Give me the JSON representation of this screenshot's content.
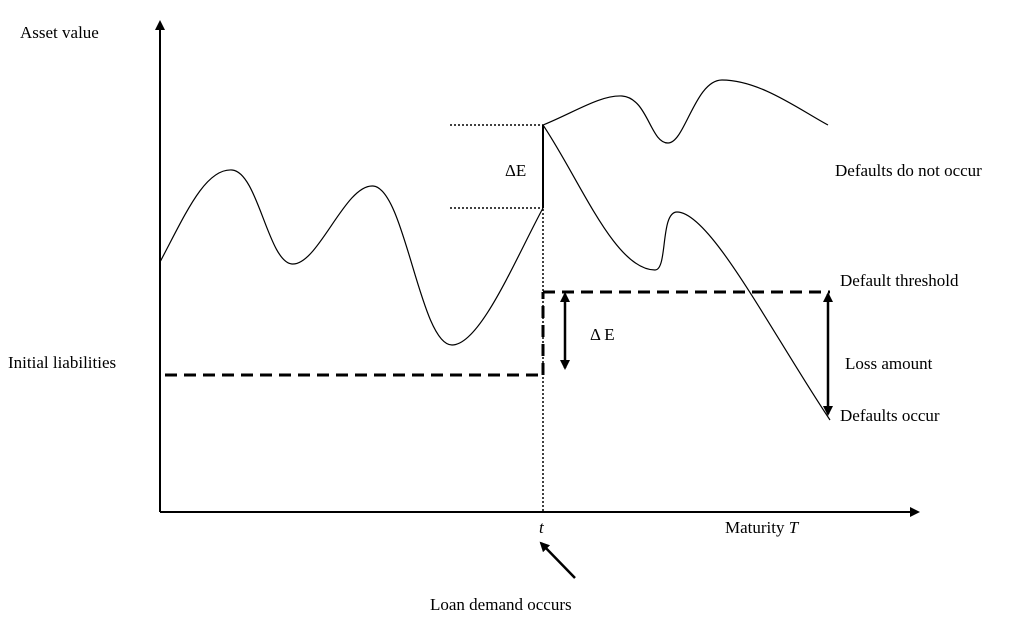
{
  "axes": {
    "y_label": "Asset value",
    "x_label": "Maturity",
    "x_label_var": "T",
    "time_marker": "t",
    "event": "Loan demand occurs"
  },
  "annotations": {
    "delta_upper": "ΔE",
    "delta_lower": "Δ E",
    "initial_liabilities": "Initial liabilities",
    "default_threshold": "Default threshold",
    "loss_amount": "Loss amount",
    "no_default": "Defaults do not occur",
    "default": "Defaults occur"
  }
}
